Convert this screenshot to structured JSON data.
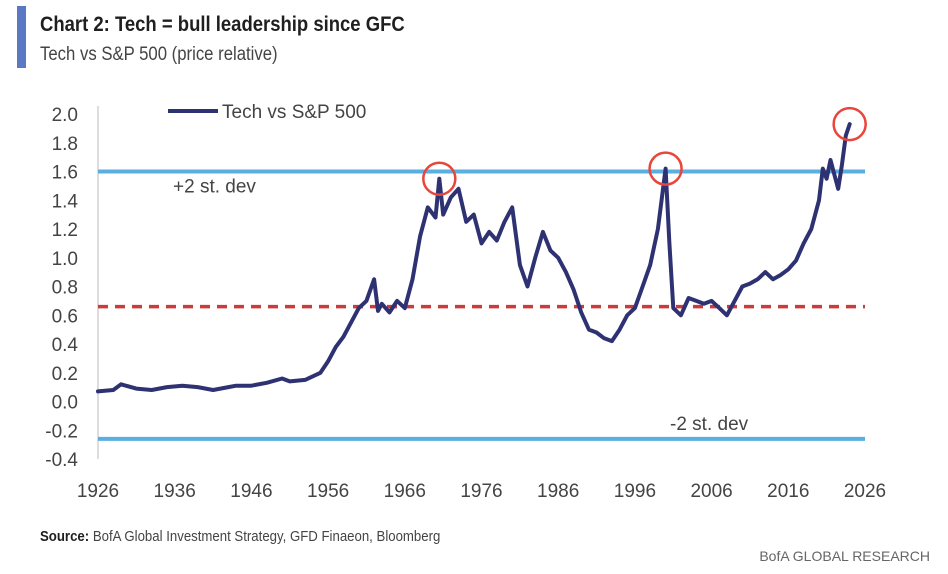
{
  "title": "Chart 2: Tech = bull leadership since GFC",
  "subtitle": "Tech vs S&P 500 (price relative)",
  "source_label": "Source:",
  "source_text": "BofA Global Investment Strategy, GFD Finaeon, Bloomberg",
  "brand": "BofA GLOBAL RESEARCH",
  "colors": {
    "series": "#2e3272",
    "std_band": "#5aaee0",
    "mean_line": "#cc3b3b",
    "highlight": "#e8453c",
    "accent_bar": "#5a78c4"
  },
  "chart_data": {
    "type": "line",
    "title": "Chart 2: Tech = bull leadership since GFC",
    "subtitle": "Tech vs S&P 500 (price relative)",
    "xlabel": "",
    "ylabel": "",
    "xlim": [
      1926,
      2026
    ],
    "ylim": [
      -0.4,
      2.0
    ],
    "x_ticks": [
      1926,
      1936,
      1946,
      1956,
      1966,
      1976,
      1986,
      1996,
      2006,
      2016,
      2026
    ],
    "y_ticks": [
      2.0,
      1.8,
      1.6,
      1.4,
      1.2,
      1.0,
      0.8,
      0.6,
      0.4,
      0.2,
      0.0,
      -0.2,
      -0.4
    ],
    "y_tick_labels": [
      "2.0",
      "1.8",
      "1.6",
      "1.4",
      "1.2",
      "1.0",
      "0.8",
      "0.6",
      "0.4",
      "0.2",
      "0.0",
      "-0.2",
      "-0.4"
    ],
    "grid": false,
    "legend_position": "top-left",
    "series": [
      {
        "name": "Tech vs S&P 500",
        "x": [
          1926,
          1928,
          1929,
          1931,
          1933,
          1935,
          1937,
          1939,
          1941,
          1943,
          1944,
          1946,
          1948,
          1950,
          1951,
          1953,
          1955,
          1956,
          1957,
          1958,
          1959,
          1960,
          1961,
          1962,
          1962.5,
          1963,
          1964,
          1965,
          1966,
          1967,
          1968,
          1969,
          1970,
          1970.5,
          1971,
          1972,
          1973,
          1974,
          1975,
          1976,
          1977,
          1978,
          1979,
          1980,
          1981,
          1982,
          1983,
          1984,
          1985,
          1986,
          1987,
          1988,
          1989,
          1990,
          1991,
          1992,
          1993,
          1994,
          1995,
          1996,
          1997,
          1998,
          1999,
          2000,
          2000.5,
          2001,
          2002,
          2003,
          2004,
          2005,
          2006,
          2007,
          2008,
          2009,
          2010,
          2011,
          2012,
          2013,
          2014,
          2015,
          2016,
          2017,
          2018,
          2019,
          2020,
          2020.5,
          2021,
          2021.5,
          2022,
          2022.5,
          2023,
          2023.5,
          2024
        ],
        "values": [
          0.07,
          0.08,
          0.12,
          0.09,
          0.08,
          0.1,
          0.11,
          0.1,
          0.08,
          0.1,
          0.11,
          0.11,
          0.13,
          0.16,
          0.14,
          0.15,
          0.2,
          0.28,
          0.38,
          0.45,
          0.55,
          0.65,
          0.7,
          0.85,
          0.63,
          0.68,
          0.62,
          0.7,
          0.65,
          0.85,
          1.15,
          1.35,
          1.28,
          1.55,
          1.3,
          1.42,
          1.48,
          1.25,
          1.3,
          1.1,
          1.18,
          1.12,
          1.25,
          1.35,
          0.95,
          0.8,
          1.0,
          1.18,
          1.05,
          1.0,
          0.9,
          0.78,
          0.62,
          0.5,
          0.48,
          0.44,
          0.42,
          0.5,
          0.6,
          0.65,
          0.8,
          0.95,
          1.2,
          1.62,
          1.1,
          0.65,
          0.6,
          0.72,
          0.7,
          0.68,
          0.7,
          0.65,
          0.6,
          0.7,
          0.8,
          0.82,
          0.85,
          0.9,
          0.85,
          0.88,
          0.92,
          0.98,
          1.1,
          1.2,
          1.4,
          1.62,
          1.55,
          1.68,
          1.58,
          1.48,
          1.65,
          1.85,
          1.93
        ]
      }
    ],
    "reference_lines": [
      {
        "label": "+2 st. dev",
        "value": 1.6,
        "style": "solid"
      },
      {
        "label": "",
        "value": 0.66,
        "style": "dashed"
      },
      {
        "label": "-2 st. dev",
        "value": -0.26,
        "style": "solid"
      }
    ],
    "highlights": [
      {
        "x": 1970.5,
        "y": 1.55
      },
      {
        "x": 2000,
        "y": 1.62
      },
      {
        "x": 2024,
        "y": 1.93
      }
    ]
  }
}
